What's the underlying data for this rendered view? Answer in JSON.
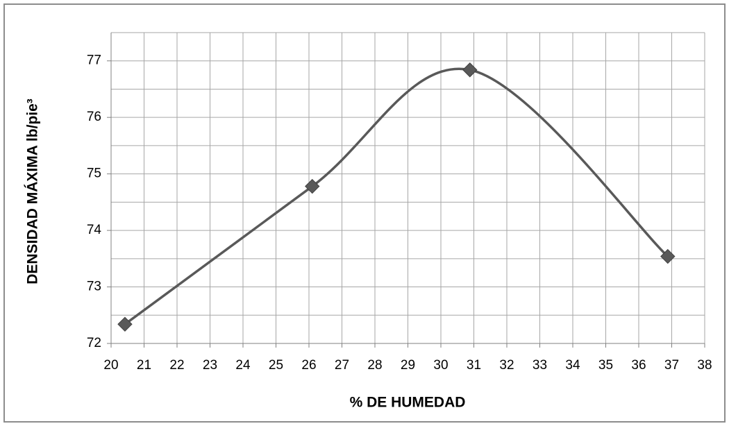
{
  "chart_data": {
    "type": "scatter",
    "smooth": true,
    "xlabel": "% DE HUMEDAD",
    "ylabel": "DENSIDAD MÁXIMA  lb/pie³",
    "series": [
      {
        "color": "#595959",
        "x": [
          20.42,
          26.1,
          30.88,
          36.88
        ],
        "values": [
          72.34,
          74.78,
          76.84,
          73.54
        ]
      }
    ],
    "xlim": [
      20,
      38
    ],
    "xticks": [
      20,
      21,
      22,
      23,
      24,
      25,
      26,
      27,
      28,
      29,
      30,
      31,
      32,
      33,
      34,
      35,
      36,
      37,
      38
    ],
    "ylim": [
      72,
      77.5
    ],
    "yticks": [
      72,
      73,
      74,
      75,
      76,
      77
    ],
    "y_minor_ticks": [
      72.5,
      73.5,
      74.5,
      75.5,
      76.5,
      77.5
    ],
    "grid": true
  }
}
